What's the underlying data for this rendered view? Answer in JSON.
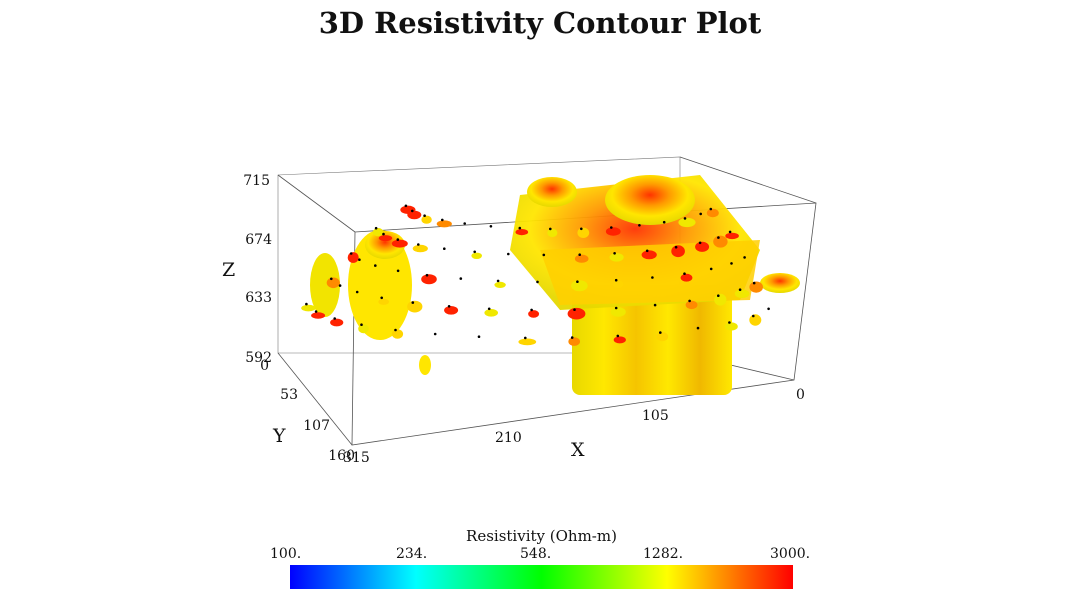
{
  "chart_data": {
    "type": "3d-contour",
    "title": "3D Resistivity Contour Plot",
    "axes": {
      "x": {
        "label": "X",
        "ticks": [
          "315",
          "210",
          "105",
          "0"
        ],
        "range": [
          0,
          315
        ]
      },
      "y": {
        "label": "Y",
        "ticks": [
          "0",
          "53",
          "107",
          "160"
        ],
        "range": [
          0,
          160
        ]
      },
      "z": {
        "label": "Z",
        "ticks": [
          "592",
          "633",
          "674",
          "715"
        ],
        "range": [
          592,
          715
        ]
      }
    },
    "colorbar": {
      "title": "Resistivity (Ohm-m)",
      "ticks": [
        "100.",
        "234.",
        "548.",
        "1282.",
        "3000."
      ],
      "scale": "log",
      "range": [
        100,
        3000
      ],
      "colors": [
        "#0000ff",
        "#00ffff",
        "#00ff00",
        "#ffff00",
        "#ff0000"
      ]
    },
    "isosurface_colors": [
      "#f0e800",
      "#ffd500",
      "#ff8a00",
      "#ff2200"
    ]
  }
}
